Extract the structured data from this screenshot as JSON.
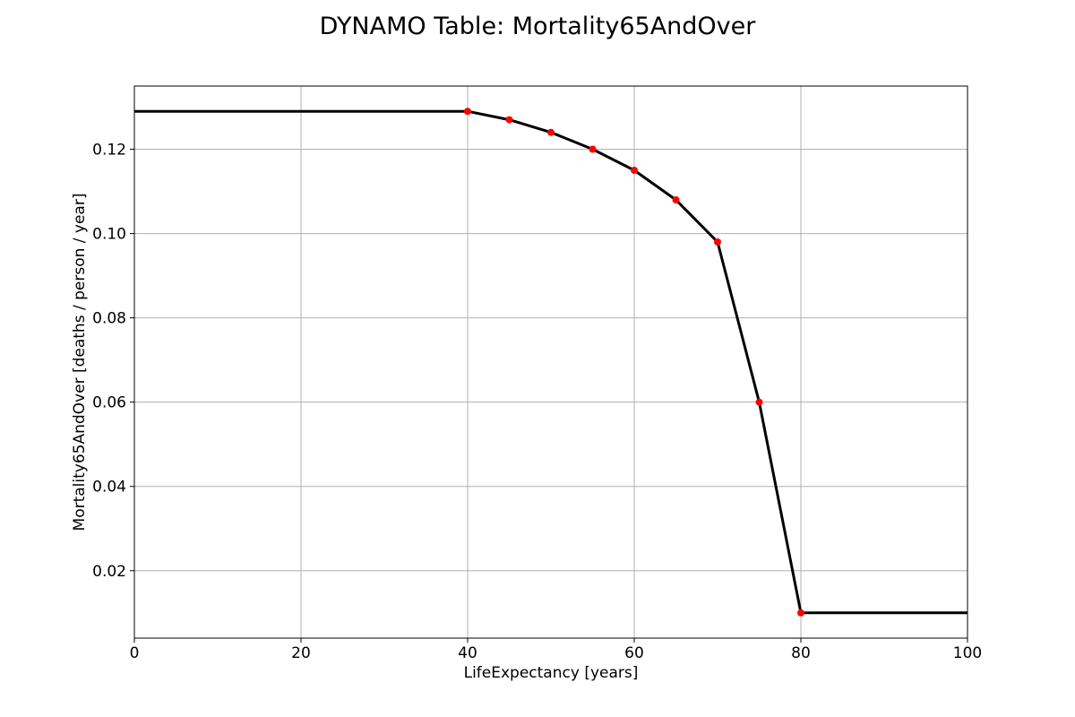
{
  "chart_data": {
    "type": "line",
    "title": "DYNAMO Table: Mortality65AndOver",
    "xlabel": "LifeExpectancy [years]",
    "ylabel": "Mortality65AndOver [deaths / person / year]",
    "xlim": [
      0,
      100
    ],
    "ylim": [
      0.004,
      0.135
    ],
    "xticks": [
      0,
      20,
      40,
      60,
      80,
      100
    ],
    "xtick_labels": [
      "0",
      "20",
      "40",
      "60",
      "80",
      "100"
    ],
    "yticks": [
      0.02,
      0.04,
      0.06,
      0.08,
      0.1,
      0.12
    ],
    "ytick_labels": [
      "0.02",
      "0.04",
      "0.06",
      "0.08",
      "0.10",
      "0.12"
    ],
    "grid": true,
    "line_color": "#000000",
    "marker_color": "#ff0000",
    "series": [
      {
        "x": [
          0,
          40,
          45,
          50,
          55,
          60,
          65,
          70,
          75,
          80,
          100
        ],
        "y": [
          0.129,
          0.129,
          0.127,
          0.124,
          0.12,
          0.115,
          0.108,
          0.098,
          0.06,
          0.01,
          0.01
        ]
      }
    ],
    "markers": {
      "x": [
        40,
        45,
        50,
        55,
        60,
        65,
        70,
        75,
        80
      ],
      "y": [
        0.129,
        0.127,
        0.124,
        0.12,
        0.115,
        0.108,
        0.098,
        0.06,
        0.01
      ]
    }
  }
}
